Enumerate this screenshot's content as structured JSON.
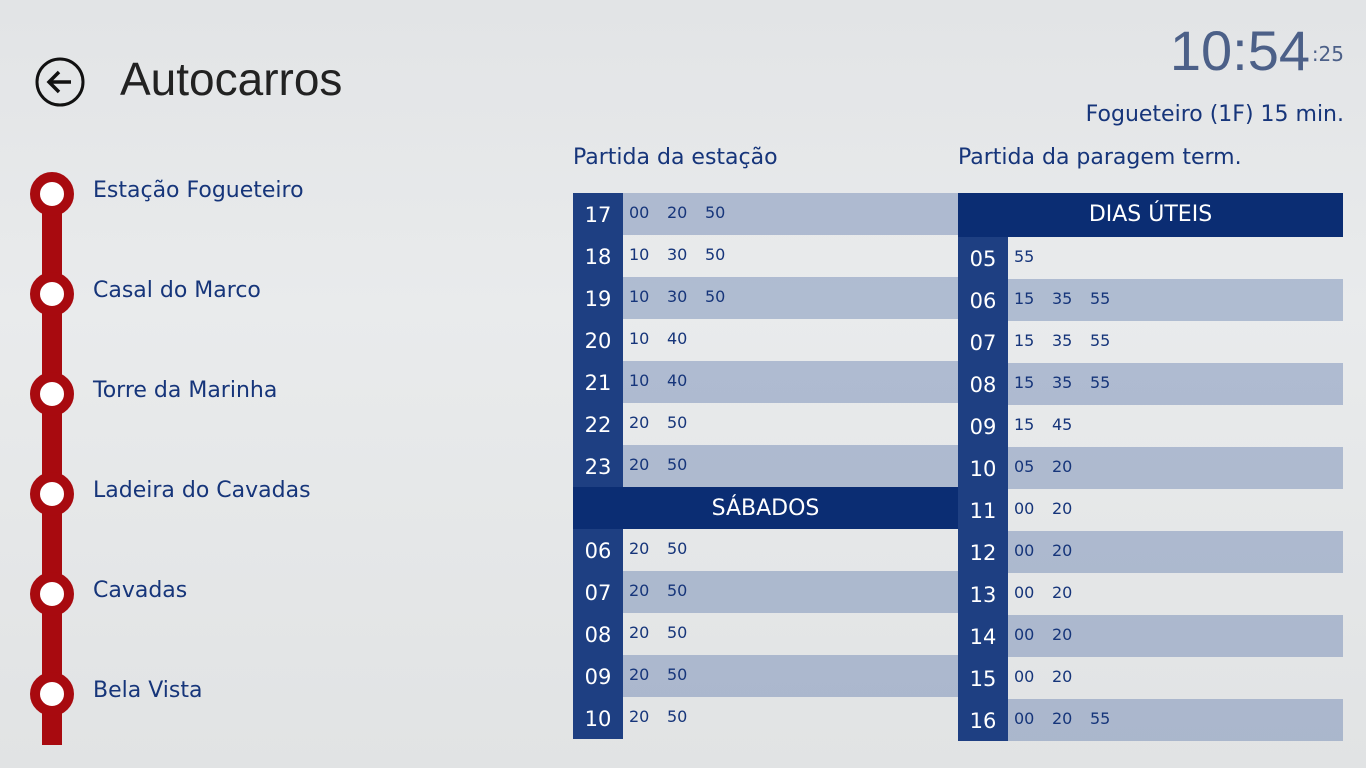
{
  "header": {
    "title": "Autocarros",
    "clock": {
      "time": "10:54",
      "seconds": ":25"
    },
    "next_bus": "Fogueteiro (1F) 15 min."
  },
  "stops": [
    "Estação Fogueteiro",
    "Casal do Marco",
    "Torre da Marinha",
    "Ladeira do Cavadas",
    "Cavadas",
    "Bela Vista"
  ],
  "from_station": {
    "heading": "Partida da estação",
    "rows": [
      {
        "hour": "17",
        "minutes": [
          "00",
          "20",
          "50"
        ]
      },
      {
        "hour": "18",
        "minutes": [
          "10",
          "30",
          "50"
        ]
      },
      {
        "hour": "19",
        "minutes": [
          "10",
          "30",
          "50"
        ]
      },
      {
        "hour": "20",
        "minutes": [
          "10",
          "40"
        ]
      },
      {
        "hour": "21",
        "minutes": [
          "10",
          "40"
        ]
      },
      {
        "hour": "22",
        "minutes": [
          "20",
          "50"
        ]
      },
      {
        "hour": "23",
        "minutes": [
          "20",
          "50"
        ]
      }
    ],
    "saturday": {
      "label": "SÁBADOS",
      "rows": [
        {
          "hour": "06",
          "minutes": [
            "20",
            "50"
          ]
        },
        {
          "hour": "07",
          "minutes": [
            "20",
            "50"
          ]
        },
        {
          "hour": "08",
          "minutes": [
            "20",
            "50"
          ]
        },
        {
          "hour": "09",
          "minutes": [
            "20",
            "50"
          ]
        },
        {
          "hour": "10",
          "minutes": [
            "20",
            "50"
          ]
        }
      ]
    }
  },
  "from_terminal": {
    "heading": "Partida da paragem term.",
    "weekdays": {
      "label": "DIAS ÚTEIS",
      "rows": [
        {
          "hour": "05",
          "minutes": [
            "55"
          ]
        },
        {
          "hour": "06",
          "minutes": [
            "15",
            "35",
            "55"
          ]
        },
        {
          "hour": "07",
          "minutes": [
            "15",
            "35",
            "55"
          ]
        },
        {
          "hour": "08",
          "minutes": [
            "15",
            "35",
            "55"
          ]
        },
        {
          "hour": "09",
          "minutes": [
            "15",
            "45"
          ]
        },
        {
          "hour": "10",
          "minutes": [
            "05",
            "20"
          ]
        },
        {
          "hour": "11",
          "minutes": [
            "00",
            "20"
          ]
        },
        {
          "hour": "12",
          "minutes": [
            "00",
            "20"
          ]
        },
        {
          "hour": "13",
          "minutes": [
            "00",
            "20"
          ]
        },
        {
          "hour": "14",
          "minutes": [
            "00",
            "20"
          ]
        },
        {
          "hour": "15",
          "minutes": [
            "00",
            "20"
          ]
        },
        {
          "hour": "16",
          "minutes": [
            "00",
            "20",
            "55"
          ]
        }
      ]
    }
  }
}
